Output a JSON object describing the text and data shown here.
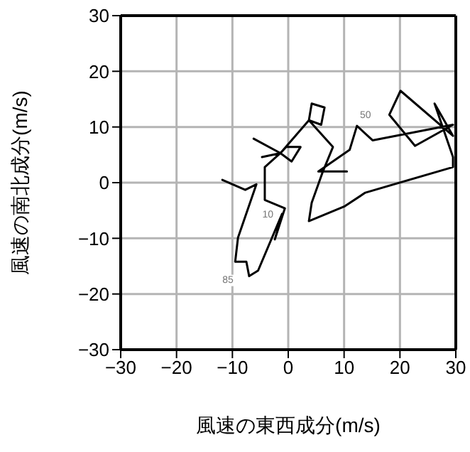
{
  "chart_data": {
    "type": "line",
    "xlabel": "風速の東西成分(m/s)",
    "ylabel": "風速の南北成分(m/s)",
    "xlim": [
      -30,
      30
    ],
    "ylim": [
      -30,
      30
    ],
    "xticks": [
      -30,
      -20,
      -10,
      0,
      10,
      20,
      30
    ],
    "yticks": [
      -30,
      -20,
      -10,
      0,
      10,
      20,
      30
    ],
    "grid": true,
    "legend": false,
    "marker": "none",
    "line_style": "solid",
    "series": [
      {
        "color": "#000000",
        "x": [
          -11.8,
          -7.7,
          -5.7,
          -9.0,
          -9.5,
          -7.5,
          -7.0,
          -5.4,
          -1.1,
          -2.4,
          -0.6,
          -4.2,
          -4.2,
          -1.4,
          -6.2,
          -1.4,
          -4.7,
          -1.4,
          -0.4,
          2.2,
          0.6,
          -1.4,
          3.7,
          4.2,
          6.5,
          5.9,
          3.7,
          8.0,
          6.2,
          4.2,
          3.7,
          10.0,
          13.8,
          29.5,
          29.5,
          26.2,
          29.5,
          20.1,
          18.1,
          22.7,
          29.5,
          15.1,
          12.3,
          11.0,
          5.4,
          10.5
        ],
        "values": [
          0.5,
          -1.3,
          -0.3,
          -9.9,
          -14.2,
          -14.2,
          -16.8,
          -15.8,
          -5.6,
          -10.2,
          -4.6,
          -3.1,
          2.8,
          5.3,
          7.9,
          5.3,
          4.6,
          5.3,
          6.4,
          6.4,
          3.8,
          5.3,
          11.2,
          14.2,
          13.5,
          10.4,
          11.2,
          6.4,
          2.0,
          -3.6,
          -6.9,
          -4.3,
          -1.8,
          2.8,
          4.6,
          14.2,
          8.4,
          16.5,
          12.2,
          6.6,
          10.4,
          7.6,
          10.2,
          5.9,
          2.0,
          2.0
        ]
      }
    ],
    "annotations": [
      {
        "text": "50",
        "x": 12.3,
        "y": 10.2
      },
      {
        "text": "85",
        "x": -7.0,
        "y": -16.8
      },
      {
        "text": "10",
        "x": -1.1,
        "y": -5.6
      }
    ]
  }
}
